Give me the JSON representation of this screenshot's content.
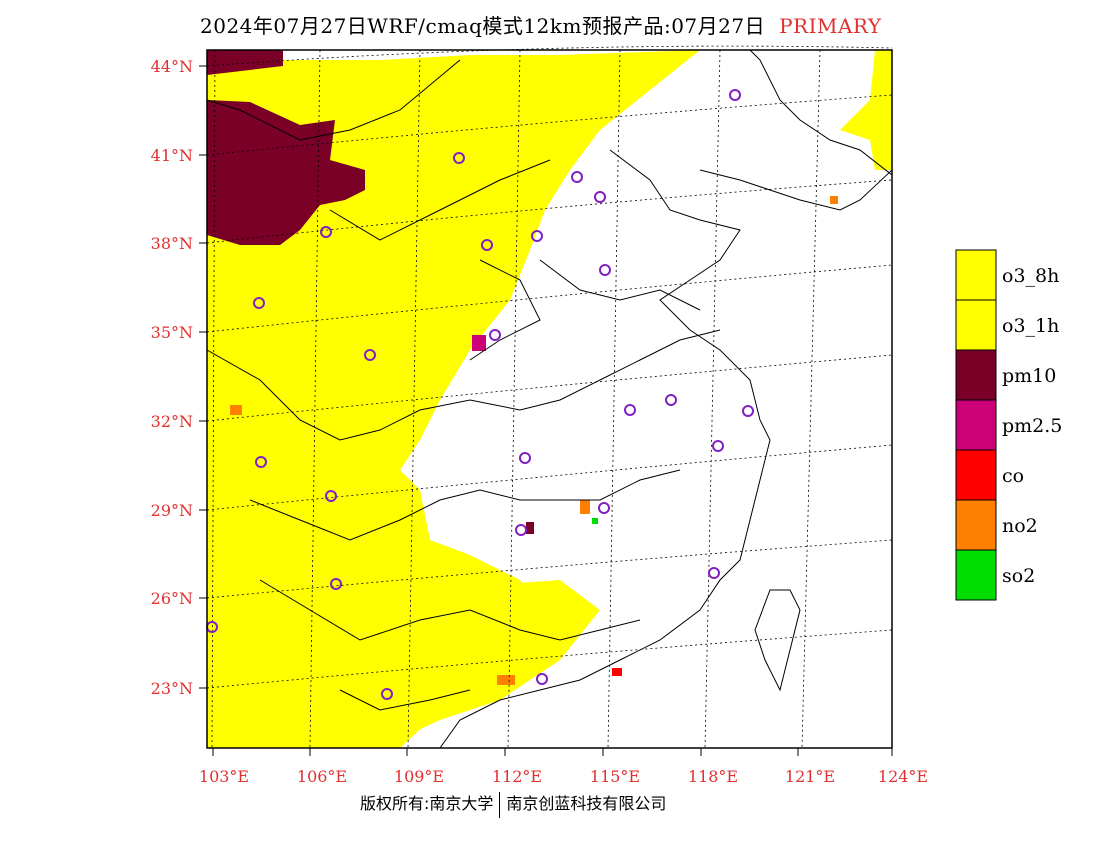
{
  "title": {
    "main": "2024年07月27日WRF/cmaq模式12km预报产品:07月27日",
    "tag": "PRIMARY",
    "tag_color": "#e03030"
  },
  "axes": {
    "lat_labels": [
      "44°N",
      "41°N",
      "38°N",
      "35°N",
      "32°N",
      "29°N",
      "26°N",
      "23°N"
    ],
    "lon_labels": [
      "103°E",
      "106°E",
      "109°E",
      "112°E",
      "115°E",
      "118°E",
      "121°E",
      "124°E"
    ],
    "label_color": "#e03030"
  },
  "legend": [
    {
      "name": "o3_8h",
      "color": "#ffff00"
    },
    {
      "name": "o3_1h",
      "color": "#ffff00"
    },
    {
      "name": "pm10",
      "color": "#7a0028"
    },
    {
      "name": "pm2.5",
      "color": "#cc0077"
    },
    {
      "name": "co",
      "color": "#ff0000"
    },
    {
      "name": "no2",
      "color": "#ff7f00"
    },
    {
      "name": "so2",
      "color": "#00dd00"
    }
  ],
  "footer": {
    "left": "版权所有:南京大学",
    "right": "南京创蓝科技有限公司"
  }
}
